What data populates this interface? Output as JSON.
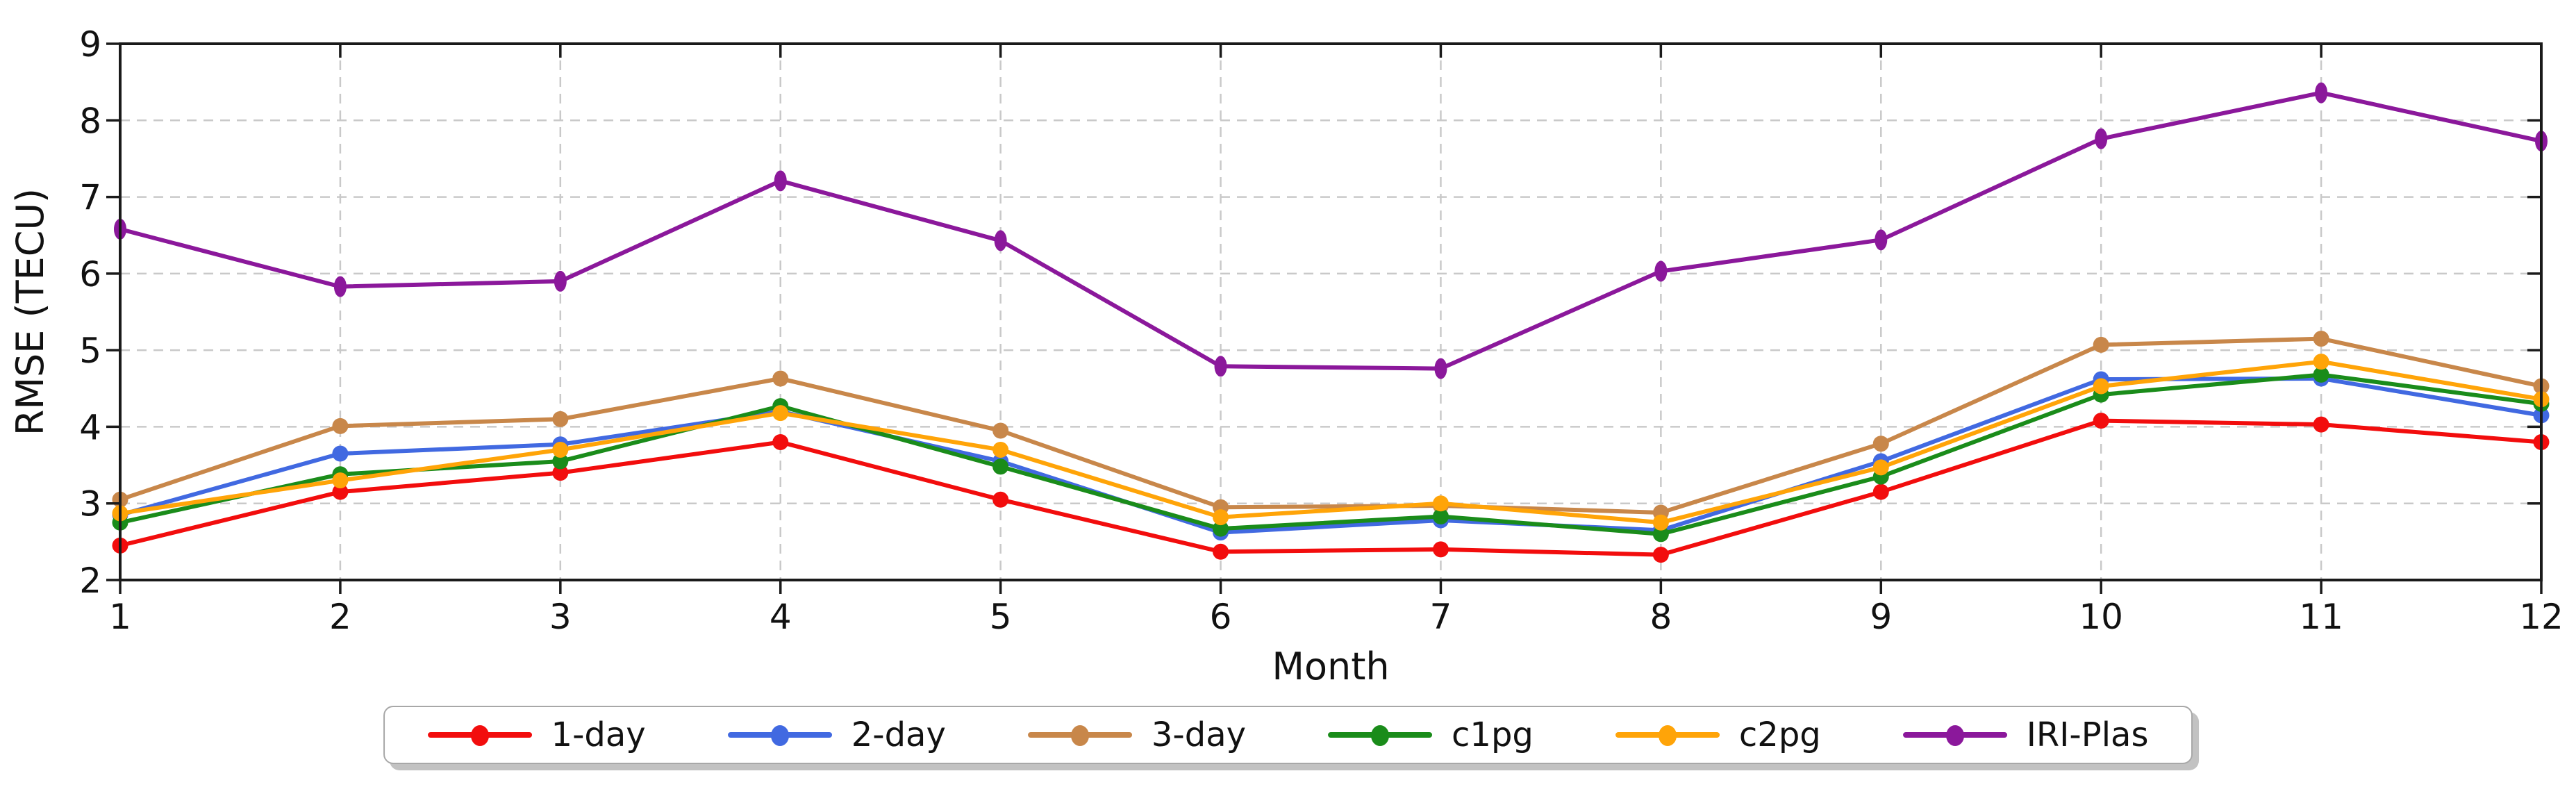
{
  "figure": {
    "xlabel": "Month",
    "ylabel": "RMSE (TECU)",
    "background": "#ffffff",
    "grid_color": "#c9c9c9",
    "spine_color": "#1a1a1a"
  },
  "chart_data": {
    "type": "line",
    "title": "",
    "xlabel": "Month",
    "ylabel": "RMSE (TECU)",
    "x": [
      1,
      2,
      3,
      4,
      5,
      6,
      7,
      8,
      9,
      10,
      11,
      12
    ],
    "xlim": [
      1,
      12
    ],
    "ylim": [
      2,
      9
    ],
    "xticks": [
      1,
      2,
      3,
      4,
      5,
      6,
      7,
      8,
      9,
      10,
      11,
      12
    ],
    "yticks": [
      2,
      3,
      4,
      5,
      6,
      7,
      8,
      9
    ],
    "grid": "dashed-both-axes",
    "legend_position": "bottom-center",
    "series": [
      {
        "name": "1-day",
        "color": "#f20d0d",
        "marker": "circle",
        "values": [
          2.45,
          3.15,
          3.4,
          3.8,
          3.05,
          2.37,
          2.4,
          2.33,
          3.15,
          4.08,
          4.03,
          3.8
        ]
      },
      {
        "name": "2-day",
        "color": "#4169e1",
        "marker": "circle",
        "values": [
          2.85,
          3.65,
          3.77,
          4.2,
          3.55,
          2.62,
          2.78,
          2.65,
          3.55,
          4.62,
          4.63,
          4.15
        ]
      },
      {
        "name": "3-day",
        "color": "#c8874a",
        "marker": "circle",
        "values": [
          3.05,
          4.01,
          4.1,
          4.63,
          3.95,
          2.95,
          2.97,
          2.88,
          3.78,
          5.07,
          5.15,
          4.53
        ]
      },
      {
        "name": "c1pg",
        "color": "#1a8c1a",
        "marker": "circle",
        "values": [
          2.75,
          3.38,
          3.55,
          4.27,
          3.48,
          2.67,
          2.83,
          2.6,
          3.35,
          4.42,
          4.68,
          4.3
        ]
      },
      {
        "name": "c2pg",
        "color": "#ffa408",
        "marker": "circle",
        "values": [
          2.87,
          3.3,
          3.7,
          4.18,
          3.7,
          2.82,
          3.0,
          2.75,
          3.47,
          4.53,
          4.85,
          4.36
        ]
      },
      {
        "name": "IRI-Plas",
        "color": "#8b189b",
        "marker": "ellipse",
        "values": [
          6.58,
          5.83,
          5.9,
          7.21,
          6.43,
          4.79,
          4.76,
          6.03,
          6.44,
          7.76,
          8.36,
          7.73
        ]
      }
    ]
  }
}
